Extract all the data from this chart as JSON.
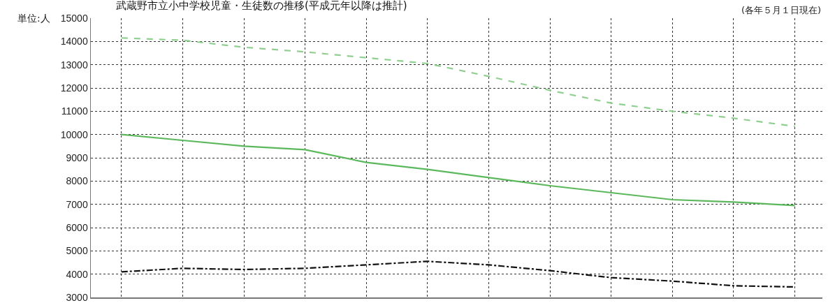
{
  "chart_data": {
    "type": "line",
    "title": "武蔵野市立小中学校児童・生徒数の推移(平成元年以降は推計)",
    "subtitle": "(各年５月１日現在)",
    "ylabel": "単位:人",
    "categories": [
      null,
      null,
      null,
      null,
      null,
      null,
      null,
      null,
      null,
      null,
      null,
      null
    ],
    "series": [
      {
        "color": "#8fcf8f",
        "line_style": "dashed",
        "values": [
          14150,
          14050,
          13750,
          13550,
          13300,
          13050,
          12500,
          11900,
          11350,
          11000,
          10700,
          10350
        ]
      },
      {
        "color": "#5cb85c",
        "line_style": "solid",
        "values": [
          10000,
          9750,
          9500,
          9350,
          8800,
          8500,
          8150,
          7800,
          7500,
          7200,
          7100,
          6950
        ]
      },
      {
        "color": "#111111",
        "line_style": "dashdot",
        "values": [
          4100,
          4250,
          4200,
          4250,
          4400,
          4550,
          4400,
          4150,
          3850,
          3700,
          3500,
          3450
        ]
      }
    ],
    "ylim": [
      3000,
      15000
    ],
    "yticks": [
      3000,
      4000,
      5000,
      6000,
      7000,
      8000,
      9000,
      10000,
      11000,
      12000,
      13000,
      14000,
      15000
    ],
    "grid": true,
    "marker": "none"
  }
}
